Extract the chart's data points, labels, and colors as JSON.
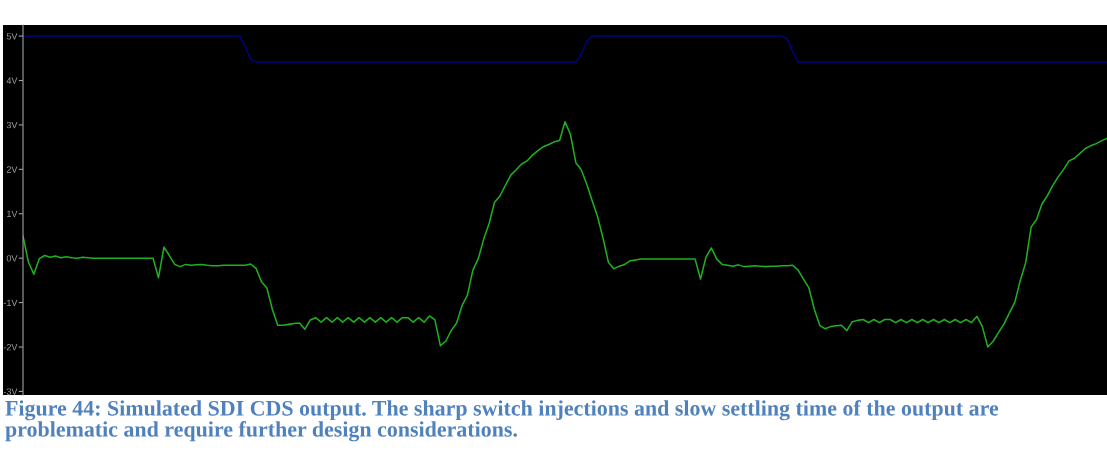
{
  "chart_data": {
    "type": "line",
    "categories": [
      null,
      null,
      null,
      null,
      null,
      null,
      null,
      null,
      null,
      null,
      null,
      null,
      null,
      null,
      null,
      null,
      null,
      null,
      null,
      null,
      null,
      null,
      null,
      null,
      null,
      null,
      null,
      null,
      null,
      null,
      null,
      null,
      null,
      null,
      null,
      null,
      null,
      null,
      null,
      null,
      null,
      null,
      null,
      null,
      null,
      null,
      null,
      null,
      null,
      null,
      null,
      null,
      null,
      null,
      null,
      null,
      null,
      null,
      null,
      null,
      null,
      null,
      null,
      null,
      null,
      null,
      null,
      null,
      null,
      null,
      null,
      null,
      null,
      null,
      null,
      null,
      null,
      null,
      null,
      null,
      null,
      null,
      null,
      null,
      null,
      null,
      null,
      null,
      null,
      null,
      null,
      null,
      null,
      null,
      null,
      null,
      null,
      null,
      null,
      null,
      null,
      null,
      null,
      null,
      null,
      null,
      null,
      null,
      null,
      null,
      null,
      null,
      null,
      null,
      null,
      null,
      null,
      null,
      null,
      null,
      null,
      null,
      null,
      null,
      null,
      null,
      null,
      null,
      null,
      null,
      null,
      null,
      null,
      null,
      null,
      null,
      null,
      null,
      null,
      null,
      null,
      null,
      null,
      null,
      null,
      null,
      null,
      null,
      null,
      null,
      null,
      null,
      null,
      null,
      null,
      null,
      null,
      null,
      null,
      null,
      null,
      null,
      null,
      null,
      null,
      null,
      null,
      null,
      null,
      null,
      null,
      null,
      null,
      null,
      null,
      null,
      null,
      null,
      null,
      null,
      null,
      null,
      null,
      null,
      null,
      null,
      null,
      null,
      null,
      null,
      null,
      null,
      null,
      null,
      null,
      null,
      null,
      null,
      null,
      null,
      null
    ],
    "ylim": [
      -3.08,
      5.25
    ],
    "yticks": [
      {
        "value": -3,
        "label": "-3V"
      },
      {
        "value": -2,
        "label": "-2V"
      },
      {
        "value": -1,
        "label": "-1V"
      },
      {
        "value": 0,
        "label": "0V"
      },
      {
        "value": 1,
        "label": "1V"
      },
      {
        "value": 2,
        "label": "2V"
      },
      {
        "value": 3,
        "label": "3V"
      },
      {
        "value": 4,
        "label": "4V"
      },
      {
        "value": 5,
        "label": "5V"
      }
    ],
    "series": [
      {
        "color": "#000080",
        "values": [
          5,
          5,
          5,
          5,
          5,
          5,
          5,
          5,
          5,
          5,
          5,
          5,
          5,
          5,
          5,
          5,
          5,
          5,
          5,
          5,
          5,
          5,
          5,
          5,
          5,
          5,
          5,
          5,
          5,
          5,
          5,
          5,
          5,
          5,
          5,
          5,
          5,
          5,
          5,
          5,
          5,
          4.77,
          4.48,
          4.42,
          4.42,
          4.42,
          4.42,
          4.42,
          4.42,
          4.42,
          4.42,
          4.42,
          4.42,
          4.42,
          4.42,
          4.42,
          4.42,
          4.42,
          4.42,
          4.42,
          4.42,
          4.42,
          4.42,
          4.42,
          4.42,
          4.42,
          4.42,
          4.42,
          4.42,
          4.42,
          4.42,
          4.42,
          4.42,
          4.42,
          4.42,
          4.42,
          4.42,
          4.42,
          4.42,
          4.42,
          4.42,
          4.42,
          4.42,
          4.42,
          4.42,
          4.42,
          4.42,
          4.42,
          4.42,
          4.42,
          4.42,
          4.42,
          4.42,
          4.42,
          4.42,
          4.42,
          4.42,
          4.42,
          4.42,
          4.42,
          4.42,
          4.42,
          4.42,
          4.59,
          4.88,
          5,
          5,
          5,
          5,
          5,
          5,
          5,
          5,
          5,
          5,
          5,
          5,
          5,
          5,
          5,
          5,
          5,
          5,
          5,
          5,
          5,
          5,
          5,
          5,
          5,
          5,
          5,
          5,
          5,
          5,
          5,
          5,
          5,
          5,
          5,
          5,
          4.94,
          4.65,
          4.42,
          4.42,
          4.42,
          4.42,
          4.42,
          4.42,
          4.42,
          4.42,
          4.42,
          4.42,
          4.42,
          4.42,
          4.42,
          4.42,
          4.42,
          4.42,
          4.42,
          4.42,
          4.42,
          4.42,
          4.42,
          4.42,
          4.42,
          4.42,
          4.42,
          4.42,
          4.42,
          4.42,
          4.42,
          4.42,
          4.42,
          4.42,
          4.42,
          4.42,
          4.42,
          4.42,
          4.42,
          4.42,
          4.42,
          4.42,
          4.42,
          4.42,
          4.42,
          4.42,
          4.42,
          4.42,
          4.42,
          4.42,
          4.42,
          4.42,
          4.42,
          4.42,
          4.42,
          4.42,
          4.42,
          4.42,
          4.42,
          4.42
        ]
      },
      {
        "color": "#1fb01f",
        "values": [
          0.5,
          -0.09,
          -0.36,
          -0.01,
          0.06,
          0.02,
          0.05,
          0.01,
          0.03,
          0.01,
          0,
          0.02,
          0.01,
          0,
          0,
          0,
          0,
          0,
          0,
          0,
          0,
          0,
          0,
          0,
          0,
          -0.44,
          0.25,
          0.06,
          -0.14,
          -0.19,
          -0.14,
          -0.16,
          -0.15,
          -0.14,
          -0.16,
          -0.17,
          -0.17,
          -0.16,
          -0.16,
          -0.16,
          -0.16,
          -0.16,
          -0.13,
          -0.23,
          -0.53,
          -0.67,
          -1.15,
          -1.51,
          -1.51,
          -1.49,
          -1.47,
          -1.46,
          -1.6,
          -1.39,
          -1.34,
          -1.44,
          -1.34,
          -1.44,
          -1.34,
          -1.44,
          -1.34,
          -1.44,
          -1.34,
          -1.44,
          -1.34,
          -1.44,
          -1.34,
          -1.44,
          -1.34,
          -1.44,
          -1.34,
          -1.34,
          -1.44,
          -1.34,
          -1.44,
          -1.3,
          -1.39,
          -1.97,
          -1.87,
          -1.63,
          -1.46,
          -1.07,
          -0.83,
          -0.27,
          -0.01,
          0.43,
          0.78,
          1.26,
          1.4,
          1.64,
          1.87,
          1.99,
          2.12,
          2.19,
          2.32,
          2.42,
          2.51,
          2.56,
          2.62,
          2.65,
          3.07,
          2.79,
          2.15,
          1.99,
          1.67,
          1.3,
          0.94,
          0.46,
          -0.09,
          -0.24,
          -0.18,
          -0.14,
          -0.06,
          -0.04,
          -0.02,
          -0.02,
          -0.02,
          -0.02,
          -0.02,
          -0.02,
          -0.02,
          -0.02,
          -0.02,
          -0.02,
          -0.02,
          -0.47,
          0.02,
          0.23,
          -0.02,
          -0.14,
          -0.16,
          -0.18,
          -0.15,
          -0.19,
          -0.18,
          -0.17,
          -0.18,
          -0.19,
          -0.18,
          -0.18,
          -0.17,
          -0.17,
          -0.16,
          -0.27,
          -0.47,
          -0.67,
          -1.15,
          -1.51,
          -1.59,
          -1.54,
          -1.52,
          -1.51,
          -1.63,
          -1.43,
          -1.4,
          -1.38,
          -1.45,
          -1.38,
          -1.45,
          -1.38,
          -1.38,
          -1.45,
          -1.38,
          -1.45,
          -1.38,
          -1.45,
          -1.38,
          -1.45,
          -1.38,
          -1.45,
          -1.38,
          -1.45,
          -1.38,
          -1.45,
          -1.38,
          -1.45,
          -1.31,
          -1.54,
          -2,
          -1.87,
          -1.67,
          -1.48,
          -1.23,
          -0.99,
          -0.5,
          -0.1,
          0.7,
          0.87,
          1.22,
          1.41,
          1.64,
          1.83,
          2,
          2.19,
          2.25,
          2.36,
          2.47,
          2.53,
          2.58,
          2.64,
          2.7
        ]
      }
    ],
    "annotations": [
      "Figure 44: Simulated SDI CDS output. The sharp switch injections and slow settling time of the output are problematic and require further design considerations."
    ]
  }
}
